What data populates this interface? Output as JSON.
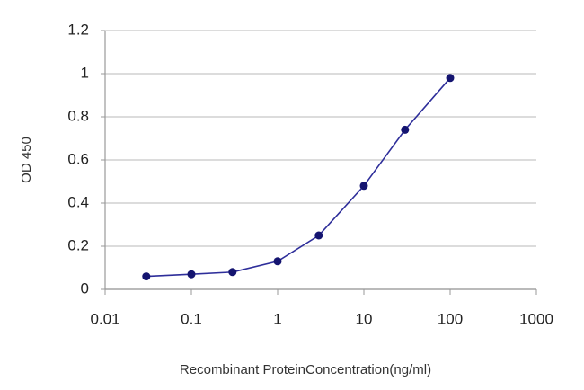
{
  "chart_data": {
    "type": "line",
    "x_label": "Recombinant ProteinConcentration(ng/ml)",
    "y_label": "OD 450",
    "x": [
      0.03,
      0.1,
      0.3,
      1,
      3,
      10,
      30,
      100
    ],
    "values": [
      0.06,
      0.07,
      0.08,
      0.13,
      0.25,
      0.48,
      0.74,
      0.98
    ],
    "color": "#2e2e9a",
    "marker_color": "#141470",
    "x_log": true,
    "xlim": [
      0.01,
      1000
    ],
    "xticks": [
      0.01,
      0.1,
      1,
      10,
      100,
      1000
    ],
    "ylim": [
      0,
      1.2
    ],
    "yticks": [
      0,
      0.2,
      0.4,
      0.6,
      0.8,
      1,
      1.2
    ],
    "grid": true
  }
}
